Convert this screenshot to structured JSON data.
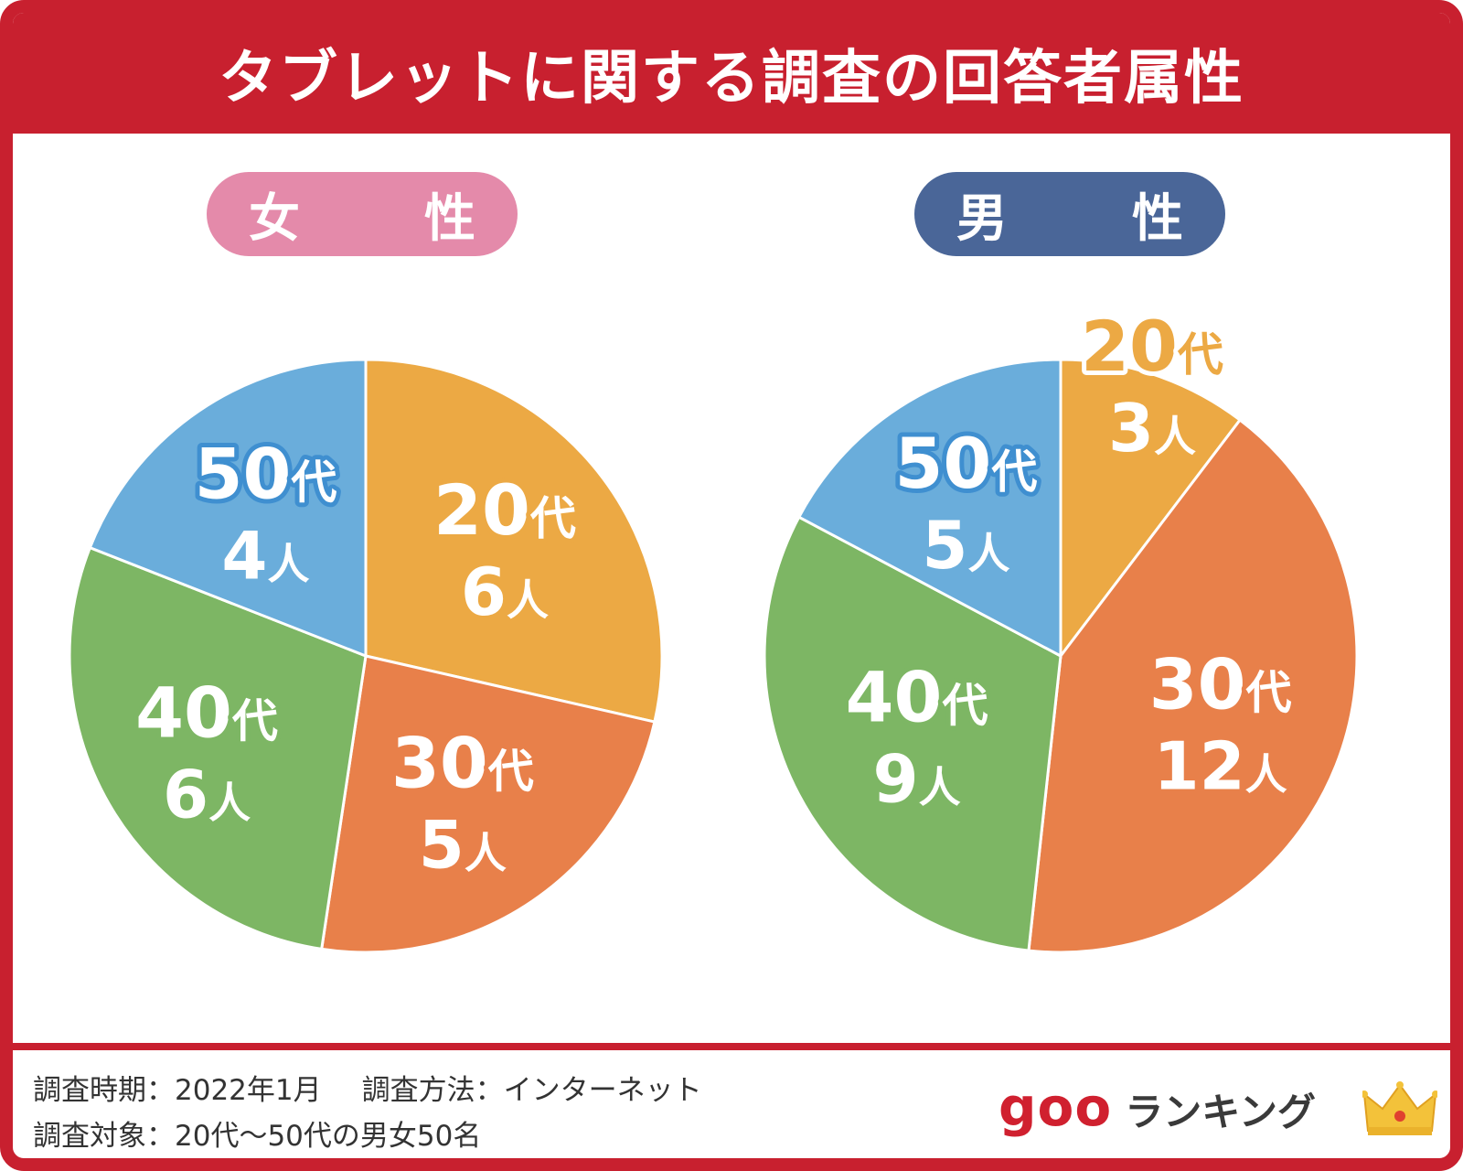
{
  "title": "タブレットに関する調査の回答者属性",
  "colors": {
    "frame": "#c8202f",
    "female_pill": "#e48aaa",
    "male_pill": "#4a6698",
    "age_20s": "#eca944",
    "age_30s": "#e8804a",
    "age_40s": "#7db664",
    "age_50s": "#6aaddb"
  },
  "chart_data": [
    {
      "type": "pie",
      "title": "女　性",
      "label_suffix": "代",
      "count_suffix": "人",
      "slices": [
        {
          "label": "20",
          "value": 6,
          "color": "#eca944",
          "text_color": "#ffffff",
          "outline": "#eca944"
        },
        {
          "label": "30",
          "value": 5,
          "color": "#e8804a",
          "text_color": "#ffffff",
          "outline": "#e8804a"
        },
        {
          "label": "40",
          "value": 6,
          "color": "#7db664",
          "text_color": "#ffffff",
          "outline": "#7db664"
        },
        {
          "label": "50",
          "value": 4,
          "color": "#6aaddb",
          "text_color": "#ffffff",
          "outline": "#3f8fd0"
        }
      ]
    },
    {
      "type": "pie",
      "title": "男　性",
      "label_suffix": "代",
      "count_suffix": "人",
      "slices": [
        {
          "label": "20",
          "value": 3,
          "color": "#eca944",
          "text_color": "#eca944",
          "outline": "#ffffff",
          "outside": true
        },
        {
          "label": "30",
          "value": 12,
          "color": "#e8804a",
          "text_color": "#ffffff",
          "outline": "#e8804a"
        },
        {
          "label": "40",
          "value": 9,
          "color": "#7db664",
          "text_color": "#ffffff",
          "outline": "#7db664"
        },
        {
          "label": "50",
          "value": 5,
          "color": "#6aaddb",
          "text_color": "#ffffff",
          "outline": "#3f8fd0"
        }
      ]
    }
  ],
  "footer": {
    "period": "調査時期：2022年1月",
    "method": "調査方法：インターネット",
    "target": "調査対象：20代〜50代の男女50名"
  },
  "logo": {
    "goo": "goo",
    "ranking": "ランキング",
    "icon": "crown-icon"
  }
}
